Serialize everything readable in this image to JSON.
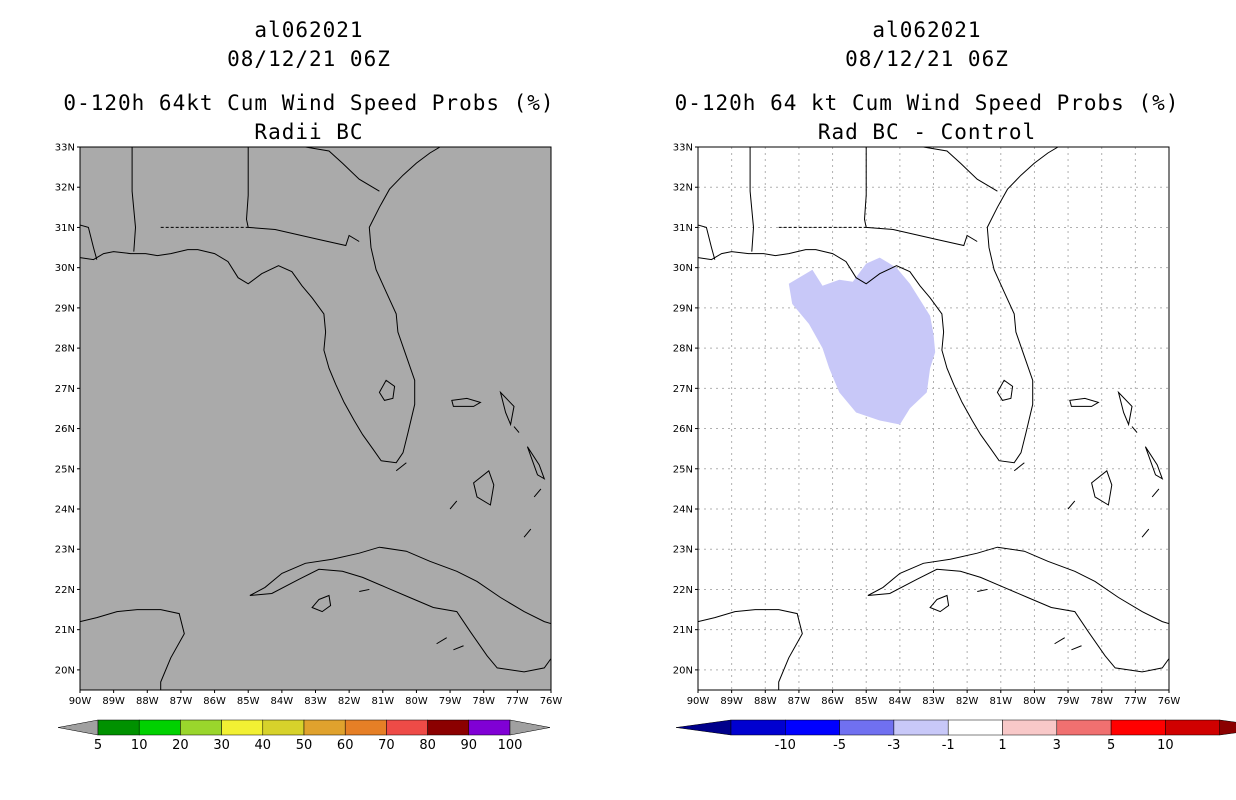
{
  "left_panel": {
    "storm_id": "al062021",
    "datetime": "08/12/21 06Z",
    "title": "0-120h 64kt Cum Wind Speed Probs (%)",
    "subtitle": "Radii BC",
    "background_color": "#aaaaaa",
    "lat_labels": [
      "33N",
      "32N",
      "31N",
      "30N",
      "29N",
      "28N",
      "27N",
      "26N",
      "25N",
      "24N",
      "23N",
      "22N",
      "21N",
      "20N"
    ],
    "lon_labels": [
      "90W",
      "89W",
      "88W",
      "87W",
      "86W",
      "85W",
      "84W",
      "83W",
      "82W",
      "81W",
      "80W",
      "79W",
      "78W",
      "77W",
      "76W"
    ],
    "colorbar": {
      "labels": [
        "5",
        "10",
        "20",
        "30",
        "40",
        "50",
        "60",
        "70",
        "80",
        "90",
        "100"
      ],
      "colors": [
        "#009100",
        "#00d100",
        "#9ad62c",
        "#f2f033",
        "#d7d22b",
        "#e0a22d",
        "#e67f26",
        "#ee4b47",
        "#8b0000",
        "#8000d5"
      ],
      "end_color": "#a0a0a0"
    }
  },
  "right_panel": {
    "storm_id": "al062021",
    "datetime": "08/12/21 06Z",
    "title": "0-120h 64 kt Cum Wind Speed Probs (%)",
    "subtitle": "Rad BC - Control",
    "background_color": "#ffffff",
    "anomaly_color": "#c8c8f8",
    "lat_labels": [
      "33N",
      "32N",
      "31N",
      "30N",
      "29N",
      "28N",
      "27N",
      "26N",
      "25N",
      "24N",
      "23N",
      "22N",
      "21N",
      "20N"
    ],
    "lon_labels": [
      "90W",
      "89W",
      "88W",
      "87W",
      "86W",
      "85W",
      "84W",
      "83W",
      "82W",
      "81W",
      "80W",
      "79W",
      "78W",
      "77W",
      "76W"
    ],
    "colorbar": {
      "labels": [
        "-10",
        "-5",
        "-3",
        "-1",
        "1",
        "3",
        "5",
        "10"
      ],
      "colors": [
        "#0000d0",
        "#0000ff",
        "#7070f0",
        "#c8c8f8",
        "#ffffff",
        "#f8c8c8",
        "#f07070",
        "#ff0000",
        "#d00000"
      ],
      "left_end_color": "#00008b",
      "right_end_color": "#8b0000"
    }
  }
}
